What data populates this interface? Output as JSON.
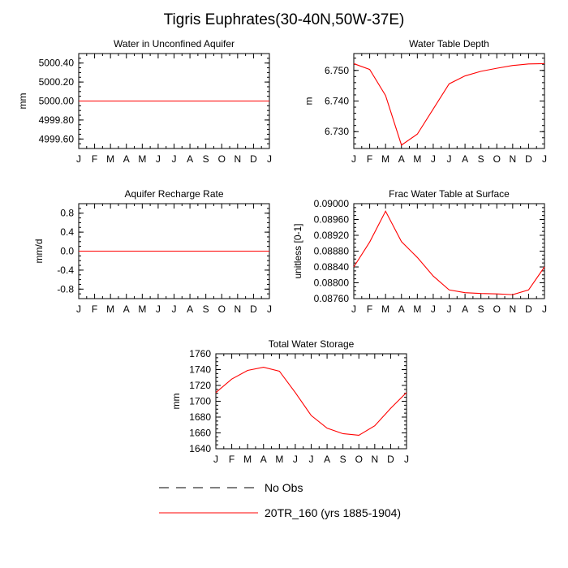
{
  "figure_title": "Tigris Euphrates(30-40N,50W-37E)",
  "colors": {
    "model": "#ff0000",
    "obs": "#000000",
    "axis": "#000000"
  },
  "legend": {
    "obs_label": "No Obs",
    "model_label": "20TR_160 (yrs 1885-1904)"
  },
  "chart_data": [
    {
      "type": "line",
      "title": "Water in Unconfined Aquifer",
      "ylabel": "mm",
      "xlabel": "",
      "x": [
        "J",
        "F",
        "M",
        "A",
        "M",
        "J",
        "J",
        "A",
        "S",
        "O",
        "N",
        "D",
        "J"
      ],
      "ylim": [
        4999.5,
        5000.5
      ],
      "yticks": [
        4999.6,
        4999.8,
        5000.0,
        5000.2,
        5000.4
      ],
      "ytick_labels": [
        "4999.60",
        "4999.80",
        "5000.00",
        "5000.20",
        "5000.40"
      ],
      "yminor": 0.05,
      "series": [
        {
          "name": "20TR_160 (yrs 1885-1904)",
          "values": [
            5000,
            5000,
            5000,
            5000,
            5000,
            5000,
            5000,
            5000,
            5000,
            5000,
            5000,
            5000,
            5000
          ]
        }
      ]
    },
    {
      "type": "line",
      "title": "Water Table Depth",
      "ylabel": "m",
      "xlabel": "",
      "x": [
        "J",
        "F",
        "M",
        "A",
        "M",
        "J",
        "J",
        "A",
        "S",
        "O",
        "N",
        "D",
        "J"
      ],
      "ylim": [
        6.7245,
        6.7555
      ],
      "yticks": [
        6.73,
        6.74,
        6.75
      ],
      "ytick_labels": [
        "6.730",
        "6.740",
        "6.750"
      ],
      "yminor": 0.002,
      "series": [
        {
          "name": "20TR_160 (yrs 1885-1904)",
          "values": [
            6.7522,
            6.7503,
            6.7418,
            6.7256,
            6.7292,
            6.7374,
            6.7456,
            6.7482,
            6.7497,
            6.7507,
            6.7516,
            6.7521,
            6.7522
          ]
        }
      ]
    },
    {
      "type": "line",
      "title": "Aquifer Recharge Rate",
      "ylabel": "mm/d",
      "xlabel": "",
      "x": [
        "J",
        "F",
        "M",
        "A",
        "M",
        "J",
        "J",
        "A",
        "S",
        "O",
        "N",
        "D",
        "J"
      ],
      "ylim": [
        -1.0,
        1.0
      ],
      "yticks": [
        -0.8,
        -0.4,
        0.0,
        0.4,
        0.8
      ],
      "ytick_labels": [
        "-0.8",
        "-0.4",
        "0.0",
        "0.4",
        "0.8"
      ],
      "yminor": 0.1,
      "series": [
        {
          "name": "20TR_160 (yrs 1885-1904)",
          "values": [
            0,
            0,
            0,
            0,
            0,
            0,
            0,
            0,
            0,
            0,
            0,
            0,
            0
          ]
        }
      ]
    },
    {
      "type": "line",
      "title": "Frac Water Table at Surface",
      "ylabel": "unitless [0-1]",
      "xlabel": "",
      "x": [
        "J",
        "F",
        "M",
        "A",
        "M",
        "J",
        "J",
        "A",
        "S",
        "O",
        "N",
        "D",
        "J"
      ],
      "ylim": [
        0.0876,
        0.09
      ],
      "yticks": [
        0.0876,
        0.088,
        0.0884,
        0.0888,
        0.0892,
        0.0896,
        0.09
      ],
      "ytick_labels": [
        "0.08760",
        "0.08800",
        "0.08840",
        "0.08880",
        "0.08920",
        "0.08960",
        "0.09000"
      ],
      "yminor": 0.0001,
      "series": [
        {
          "name": "20TR_160 (yrs 1885-1904)",
          "values": [
            0.0884,
            0.08903,
            0.08981,
            0.08904,
            0.08864,
            0.08817,
            0.08782,
            0.08775,
            0.08773,
            0.08772,
            0.0877,
            0.08782,
            0.0884
          ]
        }
      ]
    },
    {
      "type": "line",
      "title": "Total Water Storage",
      "ylabel": "mm",
      "xlabel": "",
      "x": [
        "J",
        "F",
        "M",
        "A",
        "M",
        "J",
        "J",
        "A",
        "S",
        "O",
        "N",
        "D",
        "J"
      ],
      "ylim": [
        1640,
        1760
      ],
      "yticks": [
        1640,
        1660,
        1680,
        1700,
        1720,
        1740,
        1760
      ],
      "ytick_labels": [
        "1640",
        "1660",
        "1680",
        "1700",
        "1720",
        "1740",
        "1760"
      ],
      "yminor": 5,
      "series": [
        {
          "name": "20TR_160 (yrs 1885-1904)",
          "values": [
            1711,
            1728,
            1739,
            1743,
            1738,
            1711,
            1682,
            1666,
            1659,
            1657,
            1669,
            1691,
            1711
          ]
        }
      ]
    }
  ]
}
